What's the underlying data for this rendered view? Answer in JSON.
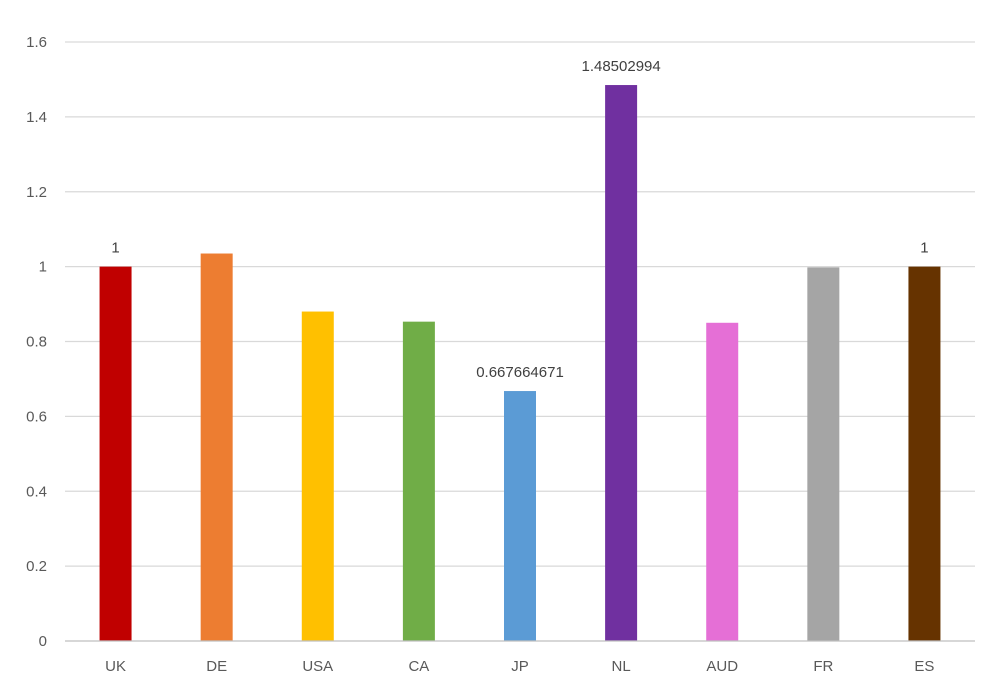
{
  "chart_data": {
    "type": "bar",
    "categories": [
      "UK",
      "DE",
      "USA",
      "CA",
      "JP",
      "NL",
      "AUD",
      "FR",
      "ES"
    ],
    "values": [
      1,
      1.035,
      0.88,
      0.853,
      0.667664671,
      1.48502994,
      0.85,
      0.998,
      1
    ],
    "colors": [
      "#C00000",
      "#ED7D31",
      "#FFC000",
      "#70AD47",
      "#5B9BD5",
      "#7030A0",
      "#E56FD6",
      "#A5A5A5",
      "#663300"
    ],
    "data_labels": [
      "1",
      "",
      "",
      "",
      "0.667664671",
      "1.48502994",
      "",
      "",
      "1"
    ],
    "y_ticks": [
      "0",
      "0.2",
      "0.4",
      "0.6",
      "0.8",
      "1",
      "1.2",
      "1.4",
      "1.6"
    ],
    "ylim": [
      0,
      1.6
    ],
    "grid": true,
    "legend": "none",
    "title": "",
    "xlabel": "",
    "ylabel": "",
    "grid_color": "#D9D9D9",
    "axis_color": "#BFBFBF"
  }
}
